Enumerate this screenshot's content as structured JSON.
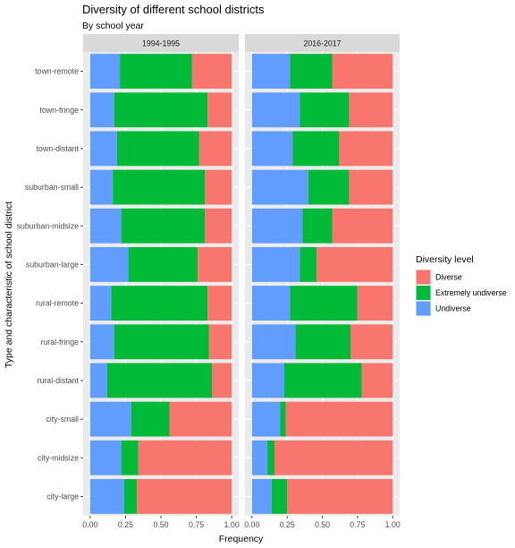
{
  "chart_data": {
    "type": "bar",
    "orientation": "horizontal",
    "stacked": true,
    "title": "Diversity of different school districts",
    "subtitle": "By school year",
    "xlabel": "Frequency",
    "ylabel": "Type and characteristic of school district",
    "xlim": [
      0,
      1
    ],
    "xticks": [
      "0.00",
      "0.25",
      "0.50",
      "0.75",
      "1.00"
    ],
    "grid": true,
    "legend": {
      "title": "Diversity level",
      "position": "right",
      "entries": [
        {
          "name": "Diverse",
          "color": "#F8766D"
        },
        {
          "name": "Extremely undiverse",
          "color": "#00BA38"
        },
        {
          "name": "Undiverse",
          "color": "#619CFF"
        }
      ]
    },
    "categories": [
      "town-remote",
      "town-fringe",
      "town-distant",
      "suburban-small",
      "suburban-midsize",
      "suburban-large",
      "rural-remote",
      "rural-fringe",
      "rural-distant",
      "city-small",
      "city-midsize",
      "city-large"
    ],
    "stack_order": [
      "Undiverse",
      "Extremely undiverse",
      "Diverse"
    ],
    "facets": [
      {
        "label": "1994-1995",
        "series": [
          {
            "name": "Undiverse",
            "values": [
              0.21,
              0.17,
              0.19,
              0.16,
              0.22,
              0.27,
              0.15,
              0.17,
              0.12,
              0.29,
              0.22,
              0.24
            ]
          },
          {
            "name": "Extremely undiverse",
            "values": [
              0.51,
              0.66,
              0.58,
              0.65,
              0.59,
              0.49,
              0.68,
              0.67,
              0.74,
              0.27,
              0.12,
              0.09
            ]
          },
          {
            "name": "Diverse",
            "values": [
              0.28,
              0.17,
              0.23,
              0.19,
              0.19,
              0.24,
              0.17,
              0.16,
              0.14,
              0.44,
              0.66,
              0.67
            ]
          }
        ]
      },
      {
        "label": "2016-2017",
        "series": [
          {
            "name": "Undiverse",
            "values": [
              0.27,
              0.34,
              0.29,
              0.4,
              0.36,
              0.34,
              0.27,
              0.31,
              0.23,
              0.2,
              0.11,
              0.14
            ]
          },
          {
            "name": "Extremely undiverse",
            "values": [
              0.3,
              0.35,
              0.33,
              0.29,
              0.21,
              0.12,
              0.48,
              0.39,
              0.55,
              0.04,
              0.05,
              0.11
            ]
          },
          {
            "name": "Diverse",
            "values": [
              0.43,
              0.31,
              0.38,
              0.31,
              0.43,
              0.54,
              0.25,
              0.3,
              0.22,
              0.76,
              0.84,
              0.75
            ]
          }
        ]
      }
    ]
  }
}
